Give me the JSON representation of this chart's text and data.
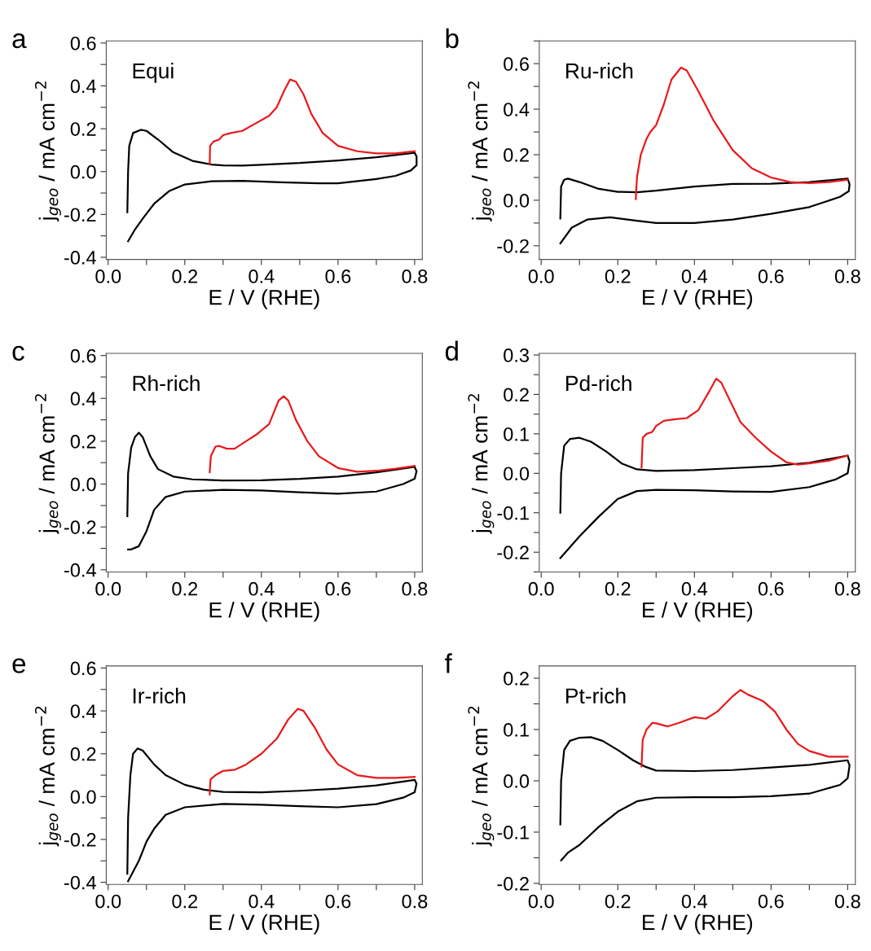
{
  "chart_data": [
    {
      "type": "line",
      "title": "a",
      "annotations": [
        "Equi"
      ],
      "xlabel": "E / V (RHE)",
      "ylabel": "j$_{geo}$ / mA cm$^{−2}$",
      "xlim": [
        -0.005,
        0.82
      ],
      "ylim": [
        -0.41,
        0.61
      ],
      "xticks": [
        {
          "value": 0,
          "label": "0.0"
        },
        {
          "value": 0.1,
          "label": null
        },
        0.2,
        {
          "value": 0.3,
          "label": null
        },
        0.4,
        {
          "value": 0.5,
          "label": null
        },
        0.6,
        {
          "value": 0.7,
          "label": null
        },
        0.8
      ],
      "yticks": [
        {
          "value": -0.4,
          "label": "-0.4"
        },
        {
          "value": -0.3,
          "label": null
        },
        {
          "value": -0.2,
          "label": "-0.2"
        },
        {
          "value": -0.1,
          "label": null
        },
        {
          "value": 0,
          "label": "0.0"
        },
        {
          "value": 0.1,
          "label": null
        },
        0.2,
        {
          "value": 0.3,
          "label": null
        },
        0.4,
        {
          "value": 0.5,
          "label": null
        },
        0.6
      ],
      "series": [
        {
          "color": "#000000",
          "x": [
            0.05,
            0.052,
            0.055,
            0.065,
            0.085,
            0.1,
            0.13,
            0.17,
            0.22,
            0.27,
            0.3,
            0.35,
            0.4,
            0.5,
            0.6,
            0.7,
            0.8,
            0.805,
            0.805,
            0.79,
            0.75,
            0.7,
            0.6,
            0.55,
            0.45,
            0.35,
            0.27,
            0.2,
            0.16,
            0.12,
            0.09,
            0.07,
            0.052
          ],
          "values": [
            -0.19,
            0.0,
            0.12,
            0.18,
            0.195,
            0.19,
            0.15,
            0.09,
            0.05,
            0.033,
            0.029,
            0.028,
            0.032,
            0.04,
            0.052,
            0.067,
            0.088,
            0.07,
            0.03,
            0.005,
            -0.02,
            -0.035,
            -0.055,
            -0.055,
            -0.05,
            -0.043,
            -0.045,
            -0.06,
            -0.09,
            -0.15,
            -0.22,
            -0.27,
            -0.325
          ]
        },
        {
          "color": "#e8191c",
          "x": [
            0.265,
            0.266,
            0.275,
            0.29,
            0.3,
            0.32,
            0.35,
            0.38,
            0.42,
            0.44,
            0.46,
            0.475,
            0.49,
            0.51,
            0.53,
            0.56,
            0.6,
            0.65,
            0.7,
            0.75,
            0.8
          ],
          "values": [
            0.035,
            0.12,
            0.14,
            0.15,
            0.17,
            0.18,
            0.19,
            0.22,
            0.26,
            0.3,
            0.38,
            0.43,
            0.42,
            0.36,
            0.27,
            0.18,
            0.12,
            0.095,
            0.085,
            0.085,
            0.095
          ]
        }
      ]
    },
    {
      "type": "line",
      "title": "b",
      "annotations": [
        "Ru-rich"
      ],
      "xlabel": "E / V (RHE)",
      "ylabel": "j$_{geo}$ / mA cm$^{−2}$",
      "xlim": [
        -0.005,
        0.82
      ],
      "ylim": [
        -0.26,
        0.7
      ],
      "xticks": [
        {
          "value": 0,
          "label": "0.0"
        },
        {
          "value": 0.1,
          "label": null
        },
        0.2,
        {
          "value": 0.3,
          "label": null
        },
        0.4,
        {
          "value": 0.5,
          "label": null
        },
        0.6,
        {
          "value": 0.7,
          "label": null
        },
        0.8
      ],
      "yticks": [
        {
          "value": -0.2,
          "label": "-0.2"
        },
        {
          "value": -0.1,
          "label": null
        },
        {
          "value": 0,
          "label": "0.0"
        },
        {
          "value": 0.1,
          "label": null
        },
        0.2,
        {
          "value": 0.3,
          "label": null
        },
        0.4,
        {
          "value": 0.5,
          "label": null
        },
        0.6,
        {
          "value": 0.7,
          "label": null
        }
      ],
      "series": [
        {
          "color": "#000000",
          "x": [
            0.05,
            0.052,
            0.06,
            0.07,
            0.1,
            0.15,
            0.2,
            0.25,
            0.3,
            0.4,
            0.5,
            0.6,
            0.7,
            0.8,
            0.805,
            0.803,
            0.78,
            0.7,
            0.6,
            0.5,
            0.4,
            0.3,
            0.25,
            0.18,
            0.12,
            0.08,
            0.05
          ],
          "values": [
            -0.08,
            0.06,
            0.09,
            0.095,
            0.08,
            0.05,
            0.037,
            0.035,
            0.042,
            0.06,
            0.072,
            0.073,
            0.08,
            0.095,
            0.07,
            0.04,
            0.015,
            -0.03,
            -0.06,
            -0.085,
            -0.1,
            -0.1,
            -0.09,
            -0.075,
            -0.085,
            -0.12,
            -0.19
          ]
        },
        {
          "color": "#e8191c",
          "x": [
            0.247,
            0.25,
            0.26,
            0.275,
            0.285,
            0.3,
            0.32,
            0.34,
            0.365,
            0.38,
            0.41,
            0.45,
            0.5,
            0.55,
            0.6,
            0.65,
            0.7,
            0.75,
            0.8
          ],
          "values": [
            0.005,
            0.1,
            0.2,
            0.27,
            0.3,
            0.33,
            0.42,
            0.53,
            0.583,
            0.57,
            0.48,
            0.35,
            0.22,
            0.14,
            0.1,
            0.08,
            0.075,
            0.08,
            0.09
          ]
        }
      ]
    },
    {
      "type": "line",
      "title": "c",
      "annotations": [
        "Rh-rich"
      ],
      "xlabel": "E / V (RHE)",
      "ylabel": "j$_{geo}$ / mA cm$^{−2}$",
      "xlim": [
        -0.005,
        0.82
      ],
      "ylim": [
        -0.41,
        0.61
      ],
      "xticks": [
        {
          "value": 0,
          "label": "0.0"
        },
        {
          "value": 0.1,
          "label": null
        },
        0.2,
        {
          "value": 0.3,
          "label": null
        },
        0.4,
        {
          "value": 0.5,
          "label": null
        },
        0.6,
        {
          "value": 0.7,
          "label": null
        },
        0.8
      ],
      "yticks": [
        {
          "value": -0.4,
          "label": "-0.4"
        },
        {
          "value": -0.3,
          "label": null
        },
        {
          "value": -0.2,
          "label": "-0.2"
        },
        {
          "value": -0.1,
          "label": null
        },
        {
          "value": 0,
          "label": "0.0"
        },
        {
          "value": 0.1,
          "label": null
        },
        0.2,
        {
          "value": 0.3,
          "label": null
        },
        0.4,
        {
          "value": 0.5,
          "label": null
        },
        0.6
      ],
      "series": [
        {
          "color": "#000000",
          "x": [
            0.05,
            0.052,
            0.06,
            0.07,
            0.08,
            0.09,
            0.11,
            0.13,
            0.17,
            0.22,
            0.3,
            0.4,
            0.5,
            0.6,
            0.7,
            0.8,
            0.805,
            0.8,
            0.77,
            0.7,
            0.6,
            0.5,
            0.4,
            0.3,
            0.2,
            0.15,
            0.12,
            0.1,
            0.08,
            0.06,
            0.052
          ],
          "values": [
            -0.15,
            0.05,
            0.17,
            0.22,
            0.24,
            0.22,
            0.13,
            0.07,
            0.035,
            0.022,
            0.017,
            0.018,
            0.024,
            0.035,
            0.055,
            0.08,
            0.06,
            0.025,
            0.0,
            -0.035,
            -0.045,
            -0.038,
            -0.03,
            -0.027,
            -0.035,
            -0.06,
            -0.12,
            -0.22,
            -0.29,
            -0.305,
            -0.305
          ]
        },
        {
          "color": "#e8191c",
          "x": [
            0.265,
            0.268,
            0.28,
            0.29,
            0.31,
            0.33,
            0.36,
            0.39,
            0.42,
            0.445,
            0.458,
            0.47,
            0.49,
            0.52,
            0.55,
            0.6,
            0.65,
            0.7,
            0.75,
            0.8
          ],
          "values": [
            0.055,
            0.13,
            0.175,
            0.178,
            0.165,
            0.165,
            0.2,
            0.235,
            0.28,
            0.39,
            0.41,
            0.39,
            0.3,
            0.2,
            0.13,
            0.075,
            0.058,
            0.062,
            0.072,
            0.085
          ]
        }
      ]
    },
    {
      "type": "line",
      "title": "d",
      "annotations": [
        "Pd-rich"
      ],
      "xlabel": "E / V (RHE)",
      "ylabel": "j$_{geo}$ / mA cm$^{−2}$",
      "xlim": [
        -0.005,
        0.82
      ],
      "ylim": [
        -0.25,
        0.304
      ],
      "xticks": [
        {
          "value": 0,
          "label": "0.0"
        },
        {
          "value": 0.1,
          "label": null
        },
        0.2,
        {
          "value": 0.3,
          "label": null
        },
        0.4,
        {
          "value": 0.5,
          "label": null
        },
        0.6,
        {
          "value": 0.7,
          "label": null
        },
        0.8
      ],
      "yticks": [
        {
          "value": -0.25,
          "label": null
        },
        {
          "value": -0.2,
          "label": "-0.2"
        },
        {
          "value": -0.15,
          "label": null
        },
        {
          "value": -0.1,
          "label": "-0.1"
        },
        {
          "value": -0.05,
          "label": null
        },
        {
          "value": 0,
          "label": "0.0"
        },
        {
          "value": 0.05,
          "label": null
        },
        0.1,
        {
          "value": 0.15,
          "label": null
        },
        0.2,
        {
          "value": 0.25,
          "label": null
        },
        0.3
      ],
      "series": [
        {
          "color": "#000000",
          "x": [
            0.05,
            0.052,
            0.06,
            0.075,
            0.1,
            0.13,
            0.17,
            0.21,
            0.25,
            0.3,
            0.4,
            0.5,
            0.6,
            0.7,
            0.8,
            0.805,
            0.8,
            0.77,
            0.7,
            0.6,
            0.5,
            0.4,
            0.3,
            0.25,
            0.2,
            0.15,
            0.1,
            0.05
          ],
          "values": [
            -0.1,
            0.0,
            0.07,
            0.087,
            0.09,
            0.08,
            0.055,
            0.025,
            0.01,
            0.006,
            0.008,
            0.013,
            0.018,
            0.027,
            0.045,
            0.03,
            0.0,
            -0.015,
            -0.035,
            -0.047,
            -0.046,
            -0.043,
            -0.042,
            -0.045,
            -0.065,
            -0.11,
            -0.16,
            -0.215
          ]
        },
        {
          "color": "#e8191c",
          "x": [
            0.262,
            0.265,
            0.275,
            0.29,
            0.3,
            0.32,
            0.35,
            0.38,
            0.41,
            0.44,
            0.457,
            0.47,
            0.5,
            0.52,
            0.56,
            0.6,
            0.64,
            0.67,
            0.7,
            0.75,
            0.8
          ],
          "values": [
            0.015,
            0.09,
            0.1,
            0.105,
            0.12,
            0.133,
            0.137,
            0.14,
            0.16,
            0.21,
            0.24,
            0.23,
            0.17,
            0.13,
            0.09,
            0.055,
            0.028,
            0.022,
            0.025,
            0.032,
            0.045
          ]
        }
      ]
    },
    {
      "type": "line",
      "title": "e",
      "annotations": [
        "Ir-rich"
      ],
      "xlabel": "E / V (RHE)",
      "ylabel": "j$_{geo}$ / mA cm$^{−2}$",
      "xlim": [
        -0.005,
        0.82
      ],
      "ylim": [
        -0.41,
        0.61
      ],
      "xticks": [
        {
          "value": 0,
          "label": "0.0"
        },
        {
          "value": 0.1,
          "label": null
        },
        0.2,
        {
          "value": 0.3,
          "label": null
        },
        0.4,
        {
          "value": 0.5,
          "label": null
        },
        0.6,
        {
          "value": 0.7,
          "label": null
        },
        0.8
      ],
      "yticks": [
        {
          "value": -0.4,
          "label": "-0.4"
        },
        {
          "value": -0.3,
          "label": null
        },
        {
          "value": -0.2,
          "label": "-0.2"
        },
        {
          "value": -0.1,
          "label": null
        },
        {
          "value": 0,
          "label": "0.0"
        },
        {
          "value": 0.1,
          "label": null
        },
        0.2,
        {
          "value": 0.3,
          "label": null
        },
        0.4,
        {
          "value": 0.5,
          "label": null
        },
        0.6
      ],
      "series": [
        {
          "color": "#000000",
          "x": [
            0.05,
            0.052,
            0.058,
            0.065,
            0.077,
            0.09,
            0.12,
            0.15,
            0.2,
            0.25,
            0.3,
            0.4,
            0.5,
            0.6,
            0.7,
            0.8,
            0.805,
            0.8,
            0.77,
            0.7,
            0.6,
            0.5,
            0.4,
            0.3,
            0.2,
            0.15,
            0.12,
            0.1,
            0.08,
            0.052
          ],
          "values": [
            -0.36,
            -0.1,
            0.1,
            0.2,
            0.225,
            0.215,
            0.15,
            0.1,
            0.055,
            0.032,
            0.022,
            0.02,
            0.027,
            0.037,
            0.052,
            0.078,
            0.06,
            0.02,
            -0.005,
            -0.035,
            -0.05,
            -0.045,
            -0.038,
            -0.034,
            -0.05,
            -0.085,
            -0.15,
            -0.21,
            -0.3,
            -0.395
          ]
        },
        {
          "color": "#e8191c",
          "x": [
            0.265,
            0.267,
            0.28,
            0.3,
            0.33,
            0.36,
            0.4,
            0.44,
            0.47,
            0.495,
            0.51,
            0.54,
            0.57,
            0.6,
            0.65,
            0.7,
            0.75,
            0.8
          ],
          "values": [
            0.01,
            0.08,
            0.1,
            0.12,
            0.125,
            0.15,
            0.2,
            0.27,
            0.36,
            0.41,
            0.4,
            0.32,
            0.22,
            0.15,
            0.1,
            0.087,
            0.087,
            0.092
          ]
        }
      ]
    },
    {
      "type": "line",
      "title": "f",
      "annotations": [
        "Pt-rich"
      ],
      "xlabel": "E / V (RHE)",
      "ylabel": "j$_{geo}$ / mA cm$^{−2}$",
      "xlim": [
        -0.005,
        0.82
      ],
      "ylim": [
        -0.202,
        0.224
      ],
      "xticks": [
        {
          "value": 0,
          "label": "0.0"
        },
        {
          "value": 0.1,
          "label": null
        },
        0.2,
        {
          "value": 0.3,
          "label": null
        },
        0.4,
        {
          "value": 0.5,
          "label": null
        },
        0.6,
        {
          "value": 0.7,
          "label": null
        },
        0.8
      ],
      "yticks": [
        {
          "value": -0.2,
          "label": "-0.2"
        },
        {
          "value": -0.15,
          "label": null
        },
        {
          "value": -0.1,
          "label": "-0.1"
        },
        {
          "value": -0.05,
          "label": null
        },
        {
          "value": 0,
          "label": "0.0"
        },
        {
          "value": 0.05,
          "label": null
        },
        0.1,
        {
          "value": 0.15,
          "label": null
        },
        0.2
      ],
      "series": [
        {
          "color": "#000000",
          "x": [
            0.05,
            0.052,
            0.06,
            0.075,
            0.1,
            0.13,
            0.16,
            0.2,
            0.24,
            0.27,
            0.3,
            0.4,
            0.5,
            0.6,
            0.7,
            0.8,
            0.805,
            0.8,
            0.78,
            0.7,
            0.6,
            0.5,
            0.4,
            0.3,
            0.25,
            0.2,
            0.15,
            0.1,
            0.07,
            0.052
          ],
          "values": [
            -0.085,
            0.0,
            0.06,
            0.078,
            0.084,
            0.085,
            0.078,
            0.06,
            0.04,
            0.028,
            0.02,
            0.019,
            0.021,
            0.026,
            0.031,
            0.04,
            0.03,
            0.005,
            -0.008,
            -0.025,
            -0.03,
            -0.032,
            -0.032,
            -0.033,
            -0.04,
            -0.06,
            -0.09,
            -0.125,
            -0.14,
            -0.155
          ]
        },
        {
          "color": "#e8191c",
          "x": [
            0.262,
            0.265,
            0.275,
            0.29,
            0.3,
            0.33,
            0.36,
            0.4,
            0.43,
            0.46,
            0.5,
            0.52,
            0.54,
            0.58,
            0.61,
            0.64,
            0.67,
            0.7,
            0.75,
            0.8
          ],
          "values": [
            0.028,
            0.08,
            0.1,
            0.113,
            0.112,
            0.106,
            0.113,
            0.124,
            0.121,
            0.135,
            0.165,
            0.177,
            0.168,
            0.155,
            0.135,
            0.1,
            0.072,
            0.058,
            0.047,
            0.047
          ]
        }
      ]
    }
  ]
}
